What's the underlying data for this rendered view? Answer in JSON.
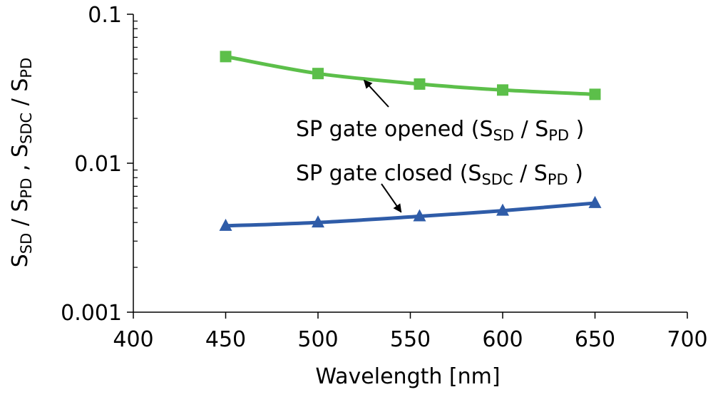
{
  "chart_data": {
    "type": "line",
    "title": "",
    "xlabel": "Wavelength [nm]",
    "ylabel": {
      "parts": [
        {
          "t": "S",
          "sub": false
        },
        {
          "t": "SD",
          "sub": true
        },
        {
          "t": " / S",
          "sub": false
        },
        {
          "t": "PD",
          "sub": true
        },
        {
          "t": "  ,  S",
          "sub": false
        },
        {
          "t": "SDC",
          "sub": true
        },
        {
          "t": " / S",
          "sub": false
        },
        {
          "t": "PD",
          "sub": true
        }
      ]
    },
    "xlim": [
      400,
      700
    ],
    "ylim": [
      0.001,
      0.1
    ],
    "yscale": "log",
    "x_ticks": [
      400,
      450,
      500,
      550,
      600,
      650,
      700
    ],
    "x_tick_labels": [
      "400",
      "450",
      "500",
      "550",
      "600",
      "650",
      "700"
    ],
    "y_ticks": [
      0.001,
      0.01,
      0.1
    ],
    "y_tick_labels": [
      "0.001",
      "0.01",
      "0.1"
    ],
    "grid": false,
    "series": [
      {
        "name": "SP gate opened",
        "color": "#5cbf4a",
        "marker": "square",
        "x": [
          450,
          500,
          555,
          600,
          650
        ],
        "values": [
          0.052,
          0.04,
          0.034,
          0.031,
          0.029
        ]
      },
      {
        "name": "SP gate closed",
        "color": "#2f5ca8",
        "marker": "triangle",
        "x": [
          450,
          500,
          555,
          600,
          650
        ],
        "values": [
          0.0038,
          0.004,
          0.0044,
          0.0048,
          0.0054
        ]
      }
    ],
    "annotations": [
      {
        "series": "SP gate opened",
        "parts": [
          {
            "t": "SP gate opened (S",
            "sub": false
          },
          {
            "t": "SD",
            "sub": true
          },
          {
            "t": "  / S",
            "sub": false
          },
          {
            "t": "PD",
            "sub": true
          },
          {
            "t": " )",
            "sub": false
          }
        ],
        "arrow_to": [
          525,
          0.036
        ]
      },
      {
        "series": "SP gate closed",
        "parts": [
          {
            "t": "SP gate closed (S",
            "sub": false
          },
          {
            "t": "SDC",
            "sub": true
          },
          {
            "t": " / S",
            "sub": false
          },
          {
            "t": "PD",
            "sub": true
          },
          {
            "t": " )",
            "sub": false
          }
        ],
        "arrow_to": [
          545,
          0.0047
        ]
      }
    ]
  }
}
